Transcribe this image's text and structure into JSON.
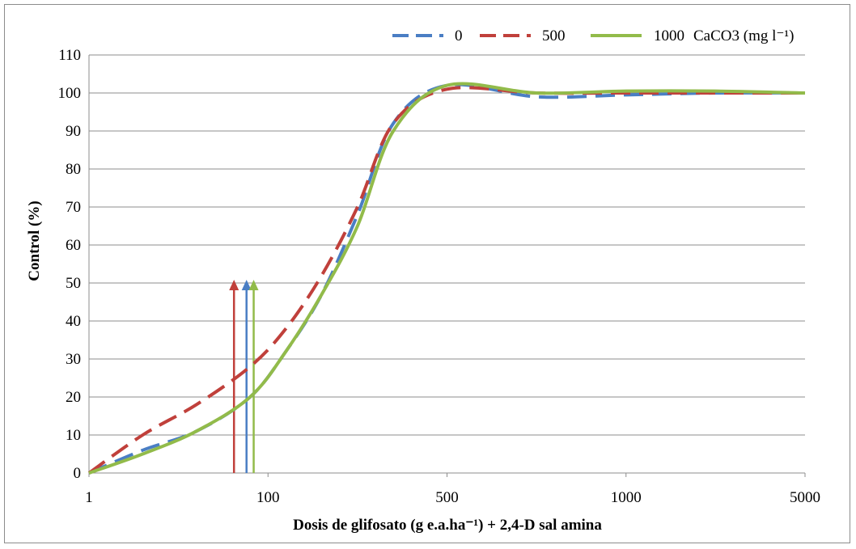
{
  "chart_data": {
    "type": "line",
    "title": "",
    "xlabel": "Dosis de glifosato  (g e.a.ha⁻¹) + 2,4-D sal amina",
    "ylabel": "Control  (%)",
    "x_scale": "categorical (log-like)",
    "x_ticks": [
      "1",
      "100",
      "500",
      "1000",
      "5000"
    ],
    "ylim": [
      0,
      110
    ],
    "y_ticks": [
      0,
      10,
      20,
      30,
      40,
      50,
      60,
      70,
      80,
      90,
      100,
      110
    ],
    "grid": "horizontal",
    "legend_position": "top-right",
    "legend_suffix": "CaCO3 (mg l⁻¹)",
    "colors": {
      "series_0": "#4a7ec4",
      "series_500": "#c0403b",
      "series_1000": "#92bb4a"
    },
    "series": [
      {
        "name": "0",
        "style": "dashed",
        "x": [
          1,
          1.3,
          1.6,
          1.9,
          2.1,
          2.3,
          2.5,
          2.7,
          3.0,
          3.5,
          4.0,
          4.5,
          5.0
        ],
        "values": [
          0,
          6,
          11,
          20,
          32,
          47,
          68,
          92,
          102,
          99,
          99.5,
          100,
          100
        ]
      },
      {
        "name": "500",
        "style": "dashed",
        "x": [
          1,
          1.3,
          1.6,
          1.9,
          2.1,
          2.3,
          2.5,
          2.7,
          3.0,
          3.5,
          4.0,
          4.5,
          5.0
        ],
        "values": [
          0,
          10,
          18,
          28,
          38,
          52,
          70,
          92,
          101,
          100,
          100,
          100,
          100
        ]
      },
      {
        "name": "1000",
        "style": "solid",
        "x": [
          1,
          1.3,
          1.6,
          1.9,
          2.1,
          2.3,
          2.5,
          2.7,
          3.0,
          3.5,
          4.0,
          4.5,
          5.0
        ],
        "values": [
          0,
          5,
          11,
          20,
          32,
          47,
          65,
          90,
          102,
          100,
          100.5,
          100.5,
          100
        ]
      }
    ],
    "markers": [
      {
        "series": "500",
        "x": 1.81,
        "y": 50
      },
      {
        "series": "0",
        "x": 1.88,
        "y": 50
      },
      {
        "series": "1000",
        "x": 1.92,
        "y": 50
      }
    ]
  }
}
